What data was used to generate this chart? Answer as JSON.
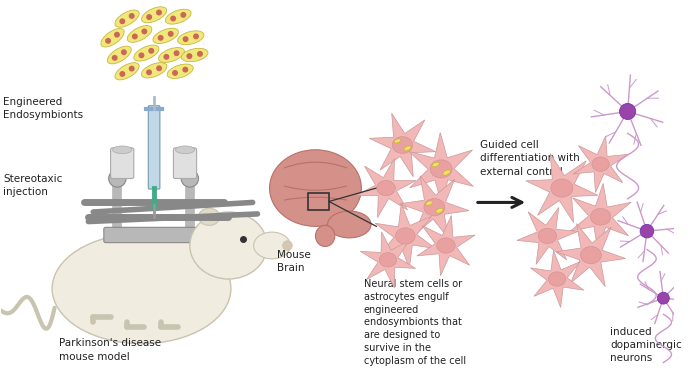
{
  "bg_color": "#ffffff",
  "fig_width": 6.96,
  "fig_height": 3.85,
  "endosymbiont_color": "#f0e87a",
  "endosymbiont_outline": "#c8b840",
  "endosymbiont_dots": "#cc6655",
  "astrocyte_fill": "#f2b8b8",
  "astrocyte_nucleus": "#e8a0a0",
  "astrocyte_endosym": "#f0e060",
  "neuron_fill": "#cc99cc",
  "neuron_dark": "#9944aa",
  "arrow_color": "#222222",
  "text_color": "#222222",
  "mouse_body": "#f0ece0",
  "mouse_ear": "#e0dbc8",
  "mouse_dark": "#c8c4b0",
  "brain_color": "#d4918a",
  "brain_dark": "#b87068",
  "syringe_body": "#c0d8e8",
  "syringe_tip": "#44aa88",
  "equipment_gray": "#b8b8b8",
  "equipment_dark": "#888888",
  "labels": {
    "engineered": "Engineered\nEndosymbionts",
    "stereotaxic": "Stereotaxic\ninjection",
    "mouse_brain": "Mouse\nBrain",
    "parkinsons": "Parkinson's disease\nmouse model",
    "neural_stem": "Neural stem cells or\nastrocytes engulf\nengineered\nendosymbionts that\nare designed to\nsurvive in the\ncytoplasm of the cell",
    "guided": "Guided cell\ndifferentiation with\nexternal control",
    "induced": "induced\ndopaminergic\nneurons"
  }
}
